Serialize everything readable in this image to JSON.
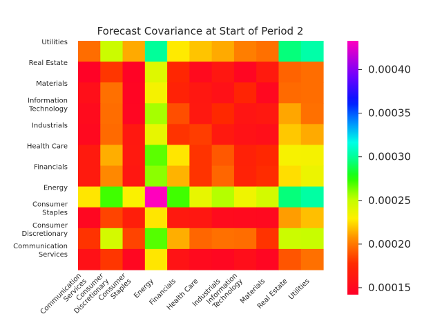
{
  "chart_data": {
    "type": "heatmap",
    "title": "Forecast Covariance at Start of Period 2",
    "x_labels": [
      "Communication\nServices",
      "Consumer\nDiscretionary",
      "Consumer\nStaples",
      "Energy",
      "Financials",
      "Health Care",
      "Industrials",
      "Information\nTechnology",
      "Materials",
      "Real Estate",
      "Utilities"
    ],
    "y_labels_top_to_bottom": [
      "Utilities",
      "Real Estate",
      "Materials",
      "Information\nTechnology",
      "Industrials",
      "Health Care",
      "Financials",
      "Energy",
      "Consumer\nStaples",
      "Consumer\nDiscretionary",
      "Communication\nServices"
    ],
    "colormap": "gist_rainbow_r",
    "vmin": 0.000142,
    "vmax": 0.000433,
    "colorbar_ticks": [
      0.00015,
      0.0002,
      0.00025,
      0.0003,
      0.00035,
      0.0004
    ],
    "colorbar_tick_labels": [
      "0.00015",
      "0.00020",
      "0.00025",
      "0.00030",
      "0.00035",
      "0.00040"
    ],
    "values_rows_top_to_bottom": [
      [
        0.000197,
        0.000248,
        0.000213,
        0.0003,
        0.000228,
        0.000219,
        0.000213,
        0.000202,
        0.000198,
        0.000295,
        0.000303
      ],
      [
        0.000144,
        0.000181,
        0.000145,
        0.000241,
        0.000175,
        0.000151,
        0.000162,
        0.000147,
        0.000165,
        0.000194,
        0.000197
      ],
      [
        0.000155,
        0.000198,
        0.000146,
        0.000233,
        0.000172,
        0.000162,
        0.000157,
        0.000173,
        0.000149,
        0.000196,
        0.000197
      ],
      [
        0.000152,
        0.000197,
        0.000147,
        0.000256,
        0.000188,
        0.000163,
        0.000177,
        0.00016,
        0.000163,
        0.000212,
        0.000198
      ],
      [
        0.00015,
        0.000196,
        0.000163,
        0.000238,
        0.00018,
        0.000183,
        0.000164,
        0.000158,
        0.000155,
        0.00022,
        0.000213
      ],
      [
        0.000165,
        0.000214,
        0.000164,
        0.000267,
        0.000227,
        0.00018,
        0.000191,
        0.000171,
        0.000176,
        0.000232,
        0.000233
      ],
      [
        0.000227,
        0.000271,
        0.000231,
        0.000433,
        0.000271,
        0.000238,
        0.000254,
        0.000235,
        0.000245,
        0.000295,
        0.000302
      ],
      [
        0.000148,
        0.000185,
        0.000168,
        0.000227,
        0.000164,
        0.000162,
        0.000152,
        0.000151,
        0.00015,
        0.00021,
        0.000218
      ],
      [
        0.00018,
        0.000245,
        0.000185,
        0.000268,
        0.000214,
        0.000195,
        0.000198,
        0.000197,
        0.00018,
        0.000248,
        0.000249
      ],
      [
        0.000157,
        0.000181,
        0.000148,
        0.000227,
        0.000159,
        0.000151,
        0.000148,
        0.000154,
        0.000147,
        0.00019,
        0.000198
      ]
    ],
    "row_labels_for_values_top_to_bottom": [
      "Utilities",
      "Real Estate",
      "Materials",
      "Information\nTechnology",
      "Industrials",
      "Health Care",
      "Energy",
      "Consumer\nStaples",
      "Consumer\nDiscretionary",
      "Communication\nServices"
    ],
    "empty_row": "Financials",
    "empty_row_values": [
      0.000165,
      0.000205,
      0.000162,
      0.00026,
      0.000215,
      0.00018,
      0.000195,
      0.000172,
      0.000178,
      0.000225,
      0.000236
    ]
  }
}
